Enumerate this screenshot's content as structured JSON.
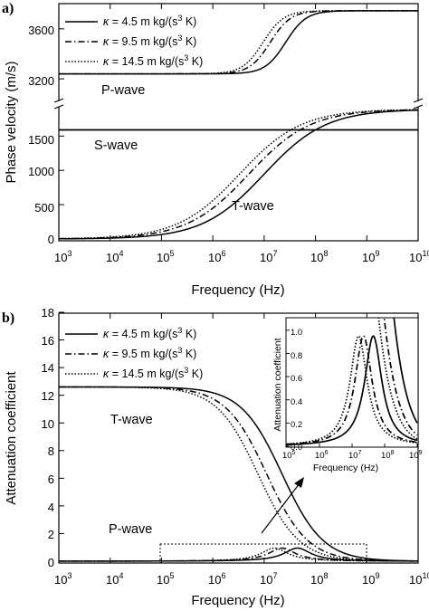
{
  "chart_data": [
    {
      "panel_label": "a)",
      "type": "line",
      "xlabel": "Frequency (Hz)",
      "ylabel": "Phase velocity (m/s)",
      "xscale": "log",
      "xlim": [
        1000,
        10000000000
      ],
      "xticks": [
        "10^3",
        "10^4",
        "10^5",
        "10^6",
        "10^7",
        "10^8",
        "10^9",
        "10^10"
      ],
      "ylim_lower": [
        0,
        1900
      ],
      "ylim_upper": [
        3150,
        3780
      ],
      "yticks_lower": [
        "0",
        "500",
        "1000",
        "1500"
      ],
      "yticks_upper": [
        "3200",
        "3600"
      ],
      "axis_break": true,
      "legend_placement": "top-left",
      "legend": [
        {
          "kappa": "4.5",
          "style": "solid"
        },
        {
          "kappa": "9.5",
          "style": "dash-dot"
        },
        {
          "kappa": "14.5",
          "style": "dotted"
        }
      ],
      "annotations": [
        "P-wave",
        "S-wave",
        "T-wave"
      ],
      "series": [
        {
          "wave": "P-wave",
          "kappa": "4.5",
          "low": 3240,
          "high": 3745,
          "center_log10": 7.42,
          "width": 0.2
        },
        {
          "wave": "P-wave",
          "kappa": "9.5",
          "low": 3240,
          "high": 3745,
          "center_log10": 7.12,
          "width": 0.2
        },
        {
          "wave": "P-wave",
          "kappa": "14.5",
          "low": 3240,
          "high": 3745,
          "center_log10": 6.98,
          "width": 0.2
        },
        {
          "wave": "S-wave",
          "constant": 1590
        },
        {
          "wave": "T-wave",
          "kappa": "4.5",
          "high": 1890,
          "center_log10": 7.0,
          "width": 0.6
        },
        {
          "wave": "T-wave",
          "kappa": "9.5",
          "high": 1890,
          "center_log10": 6.7,
          "width": 0.6
        },
        {
          "wave": "T-wave",
          "kappa": "14.5",
          "high": 1890,
          "center_log10": 6.52,
          "width": 0.6
        }
      ]
    },
    {
      "panel_label": "b)",
      "type": "line",
      "xlabel": "Frequency (Hz)",
      "ylabel": "Attenuation coefficient",
      "xscale": "log",
      "xlim": [
        1000,
        10000000000
      ],
      "ylim": [
        0,
        18
      ],
      "yticks": [
        "0",
        "2",
        "4",
        "6",
        "8",
        "10",
        "12",
        "14",
        "16",
        "18"
      ],
      "legend_placement": "top-left",
      "legend": [
        {
          "kappa": "4.5",
          "style": "solid"
        },
        {
          "kappa": "9.5",
          "style": "dash-dot"
        },
        {
          "kappa": "14.5",
          "style": "dotted"
        }
      ],
      "annotations": [
        "T-wave",
        "P-wave"
      ],
      "zoom_box": {
        "x": [
          100000,
          1000000000
        ],
        "y": [
          0,
          1.2
        ]
      },
      "series": [
        {
          "wave": "T-wave",
          "kappa": "4.5",
          "plateau": 12.6,
          "center_log10": 7.35,
          "width": 0.4
        },
        {
          "wave": "T-wave",
          "kappa": "9.5",
          "plateau": 12.6,
          "center_log10": 7.05,
          "width": 0.4
        },
        {
          "wave": "T-wave",
          "kappa": "14.5",
          "plateau": 12.6,
          "center_log10": 6.88,
          "width": 0.4
        },
        {
          "wave": "P-wave",
          "kappa": "4.5",
          "peak": 0.95,
          "peak_log10": 7.65
        },
        {
          "wave": "P-wave",
          "kappa": "9.5",
          "peak": 0.95,
          "peak_log10": 7.35
        },
        {
          "wave": "P-wave",
          "kappa": "14.5",
          "peak": 0.95,
          "peak_log10": 7.2
        }
      ],
      "inset": {
        "xlabel": "Frequency (Hz)",
        "ylabel": "Attenuation coefficient",
        "xlim": [
          100000,
          1000000000
        ],
        "xticks": [
          "10^5",
          "10^6",
          "10^7",
          "10^8",
          "10^9"
        ],
        "ylim": [
          0,
          1.1
        ],
        "yticks": [
          "0.0",
          "0.2",
          "0.4",
          "0.6",
          "0.8",
          "1.0"
        ]
      }
    }
  ],
  "text": {
    "panel_a": "a)",
    "panel_b": "b)",
    "xlabel": "Frequency (Hz)",
    "ylabel_a": "Phase velocity (m/s)",
    "ylabel_b": "Attenuation coefficient",
    "kappa_symbol": "κ",
    "legend_eq": " = ",
    "legend_units_pre": " m kg/(s",
    "legend_units_sup": "3",
    "legend_units_post": " K)",
    "kappa_values": [
      "4.5",
      "9.5",
      "14.5"
    ],
    "p_wave": "P-wave",
    "s_wave": "S-wave",
    "t_wave": "T-wave",
    "x_base": "10",
    "x_exps": [
      "3",
      "4",
      "5",
      "6",
      "7",
      "8",
      "9",
      "10"
    ],
    "inset_x_exps": [
      "5",
      "6",
      "7",
      "8",
      "9"
    ],
    "yticks_a_upper": [
      "3200",
      "3600"
    ],
    "yticks_a_lower": [
      "0",
      "500",
      "1000",
      "1500"
    ],
    "yticks_b": [
      "0",
      "2",
      "4",
      "6",
      "8",
      "10",
      "12",
      "14",
      "16",
      "18"
    ],
    "inset_yticks": [
      "0.0",
      "0.2",
      "0.4",
      "0.6",
      "0.8",
      "1.0"
    ],
    "inset_xlabel": "Frequency (Hz)",
    "inset_ylabel": "Attenuation coefficient"
  }
}
